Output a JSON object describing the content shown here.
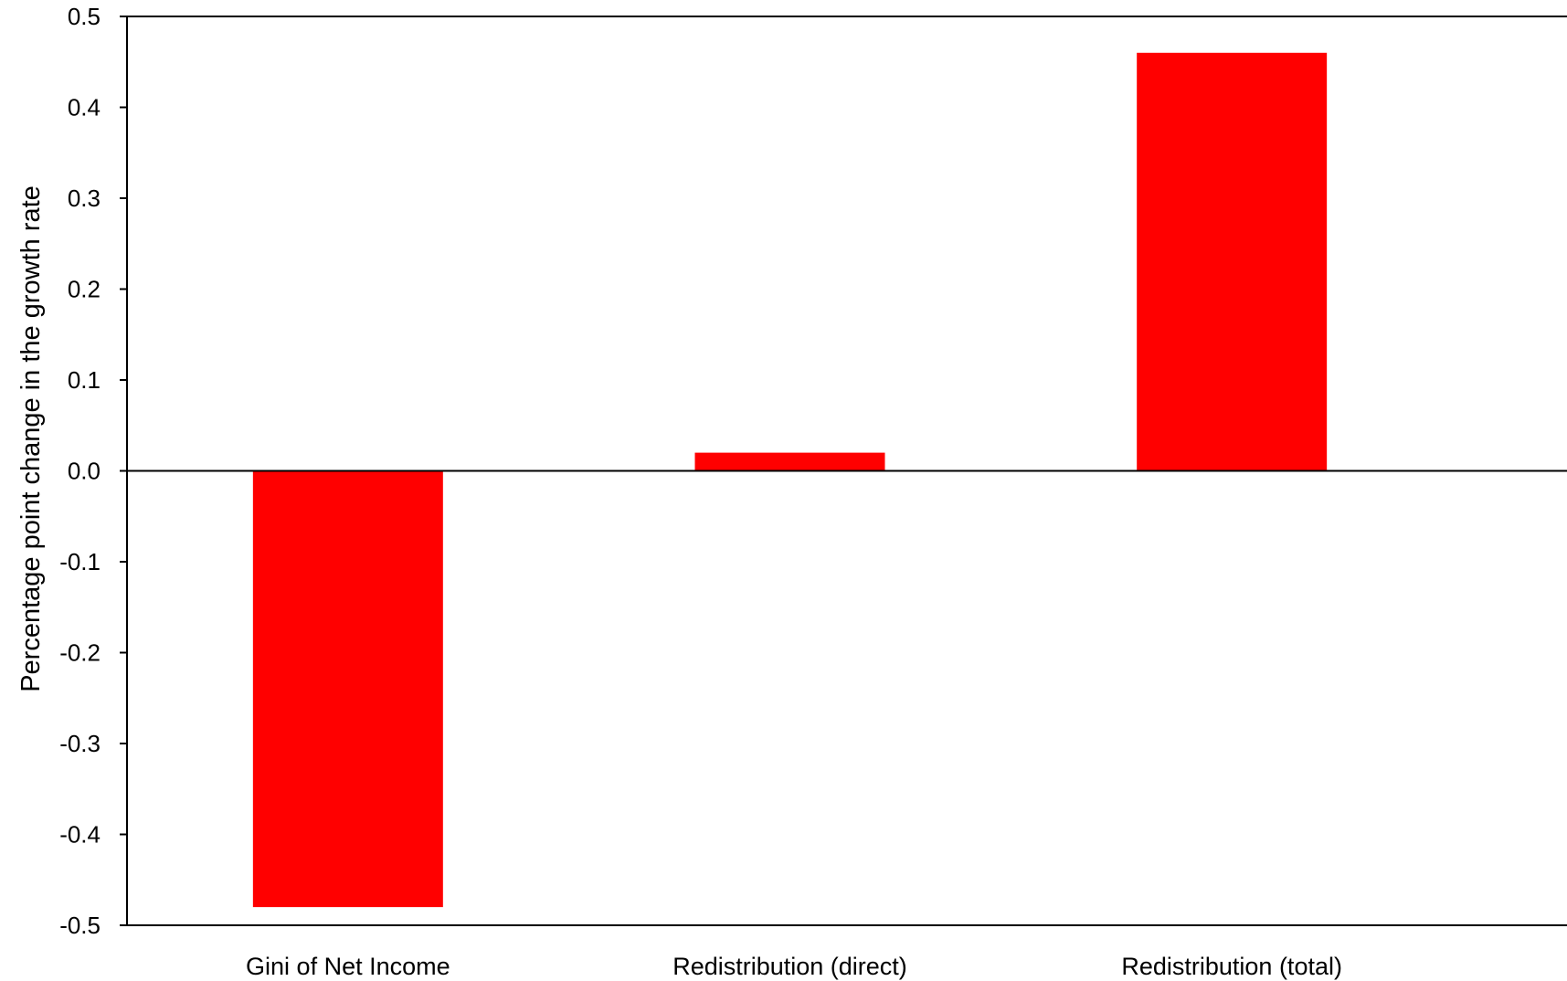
{
  "chart_data": {
    "type": "bar",
    "title": "",
    "xlabel": "",
    "ylabel": "Percentage point  change in the growth rate",
    "categories": [
      "Gini of Net Income",
      "Redistribution (direct)",
      "Redistribution (total)"
    ],
    "values": [
      -0.48,
      0.02,
      0.46
    ],
    "ylim": [
      -0.5,
      0.5
    ],
    "yticks": [
      0.5,
      0.4,
      0.3,
      0.2,
      0.1,
      0.0,
      -0.1,
      -0.2,
      -0.3,
      -0.4,
      -0.5
    ],
    "ytick_labels": [
      "0.5",
      "0.4",
      "0.3",
      "0.2",
      "0.1",
      "0.0",
      "-0.1",
      "-0.2",
      "-0.3",
      "-0.4",
      "-0.5"
    ],
    "bar_color": "#ff0000",
    "grid": false,
    "legend": "none"
  }
}
